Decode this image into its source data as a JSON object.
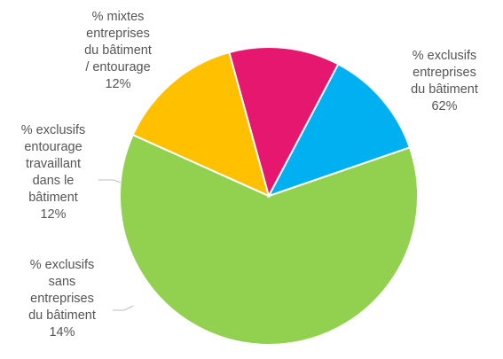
{
  "chart_data": {
    "type": "pie",
    "title": "",
    "slices": [
      {
        "label_lines": [
          "% exclusifs",
          "entreprises",
          "du bâtiment"
        ],
        "value": 62,
        "value_label": "62%",
        "color": "#92d050"
      },
      {
        "label_lines": [
          "% exclusifs",
          "sans",
          "entreprises",
          "du bâtiment"
        ],
        "value": 14,
        "value_label": "14%",
        "color": "#ffc000"
      },
      {
        "label_lines": [
          "% exclusifs",
          "entourage",
          "travaillant",
          "dans le",
          "bâtiment"
        ],
        "value": 12,
        "value_label": "12%",
        "color": "#e6176f"
      },
      {
        "label_lines": [
          "% mixtes",
          "entreprises",
          "du bâtiment",
          "/ entourage"
        ],
        "value": 12,
        "value_label": "12%",
        "color": "#00b0f0"
      }
    ]
  }
}
